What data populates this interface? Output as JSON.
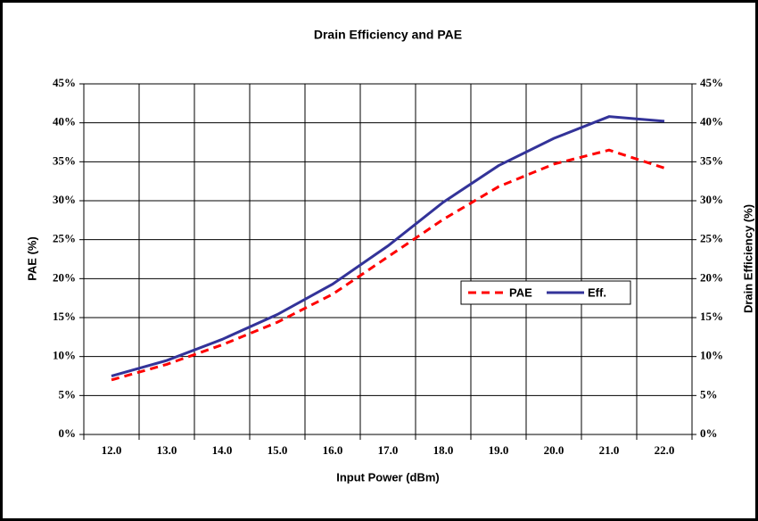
{
  "chart_data": {
    "type": "line",
    "title": "Drain Efficiency and PAE",
    "x_label": "Input Power (dBm)",
    "y_label": "PAE (%)",
    "y2_label": "Drain Efficiency (%)",
    "categories": [
      "12.0",
      "13.0",
      "14.0",
      "15.0",
      "16.0",
      "17.0",
      "18.0",
      "19.0",
      "20.0",
      "21.0",
      "22.0"
    ],
    "series": [
      {
        "name": "PAE",
        "color": "#ff0000",
        "dash": true,
        "values": [
          7.0,
          9.0,
          11.5,
          14.4,
          18.0,
          22.8,
          27.6,
          31.8,
          34.7,
          36.5,
          34.2
        ]
      },
      {
        "name": "Eff.",
        "color": "#333399",
        "dash": false,
        "axis": "y2",
        "values": [
          7.5,
          9.5,
          12.2,
          15.4,
          19.3,
          24.2,
          29.8,
          34.5,
          38.0,
          40.8,
          40.2
        ]
      }
    ],
    "ylim": [
      0,
      45
    ],
    "yticks": [
      {
        "value": 0,
        "label": "0%"
      },
      {
        "value": 5,
        "label": "5%"
      },
      {
        "value": 10,
        "label": "10%"
      },
      {
        "value": 15,
        "label": "15%"
      },
      {
        "value": 20,
        "label": "20%"
      },
      {
        "value": 25,
        "label": "25%"
      },
      {
        "value": 30,
        "label": "30%"
      },
      {
        "value": 35,
        "label": "35%"
      },
      {
        "value": 40,
        "label": "40%"
      },
      {
        "value": 45,
        "label": "45%"
      }
    ],
    "y2lim": [
      0,
      45
    ],
    "y2ticks": [
      {
        "value": 0,
        "label": "0%"
      },
      {
        "value": 5,
        "label": "5%"
      },
      {
        "value": 10,
        "label": "10%"
      },
      {
        "value": 15,
        "label": "15%"
      },
      {
        "value": 20,
        "label": "20%"
      },
      {
        "value": 25,
        "label": "25%"
      },
      {
        "value": 30,
        "label": "30%"
      },
      {
        "value": 35,
        "label": "35%"
      },
      {
        "value": 40,
        "label": "40%"
      },
      {
        "value": 45,
        "label": "45%"
      }
    ],
    "grid": true,
    "legend": "right"
  }
}
